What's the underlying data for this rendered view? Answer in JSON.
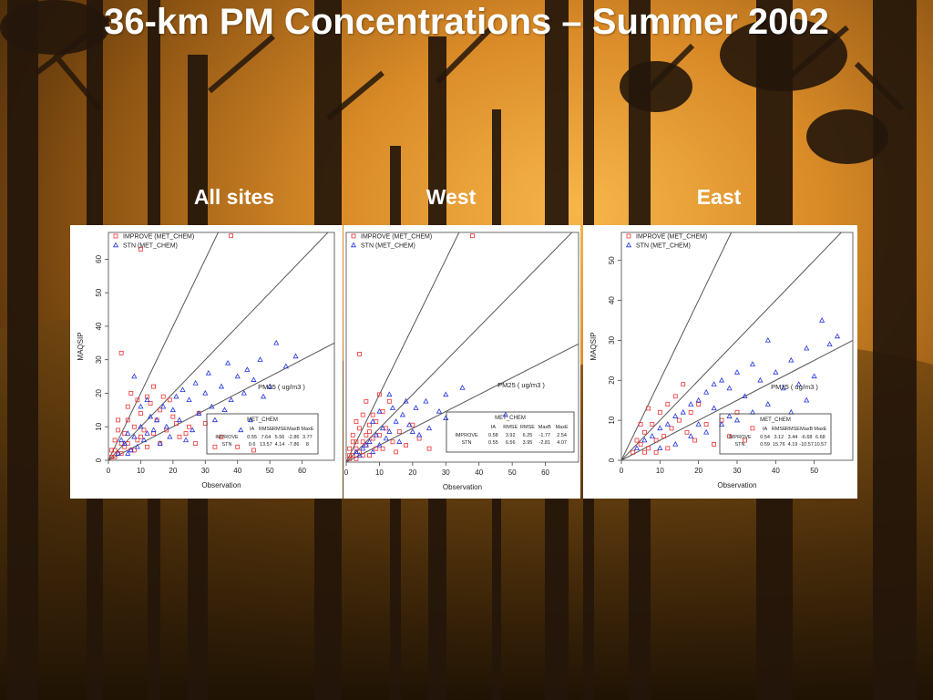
{
  "slide": {
    "title": "36-km PM Concentrations – Summer 2002",
    "panel_titles": [
      "All sites",
      "West",
      "East"
    ]
  },
  "colors": {
    "improve": "#ee3333",
    "stn": "#2233dd",
    "reference_lines": "#555555"
  },
  "chart_data": [
    {
      "type": "scatter",
      "panel": "All sites",
      "title": "PM25 ( ug/m3 )",
      "xlabel": "Observation",
      "ylabel": "MAQSIP",
      "xlim": [
        0,
        70
      ],
      "ylim": [
        0,
        68
      ],
      "xticks": [
        0,
        10,
        20,
        30,
        40,
        50,
        60
      ],
      "yticks": [
        0,
        10,
        20,
        30,
        40,
        50,
        60
      ],
      "reference_line_slopes": [
        2,
        1,
        0.5
      ],
      "legend": [
        "IMPROVE (MET_CHEM)",
        "STN (MET_CHEM)"
      ],
      "legend_position": "top-left",
      "series": [
        {
          "name": "IMPROVE (MET_CHEM)",
          "marker": "square",
          "points": [
            [
              1,
              1
            ],
            [
              2,
              3
            ],
            [
              3,
              2
            ],
            [
              4,
              5
            ],
            [
              5,
              4
            ],
            [
              2,
              6
            ],
            [
              3,
              9
            ],
            [
              5,
              8
            ],
            [
              6,
              12
            ],
            [
              7,
              3
            ],
            [
              8,
              10
            ],
            [
              9,
              6
            ],
            [
              10,
              14
            ],
            [
              11,
              9
            ],
            [
              12,
              4
            ],
            [
              13,
              17
            ],
            [
              14,
              8
            ],
            [
              15,
              12
            ],
            [
              16,
              5
            ],
            [
              17,
              19
            ],
            [
              4,
              32
            ],
            [
              38,
              67
            ],
            [
              10,
              63
            ],
            [
              18,
              9
            ],
            [
              20,
              13
            ],
            [
              22,
              7
            ],
            [
              25,
              10
            ],
            [
              27,
              5
            ],
            [
              30,
              11
            ],
            [
              33,
              4
            ],
            [
              6,
              16
            ],
            [
              7,
              20
            ],
            [
              9,
              18
            ],
            [
              3,
              12
            ],
            [
              12,
              19
            ],
            [
              14,
              22
            ],
            [
              16,
              15
            ],
            [
              19,
              18
            ],
            [
              21,
              11
            ],
            [
              24,
              8
            ],
            [
              1,
              3
            ],
            [
              2,
              1
            ],
            [
              4,
              2
            ],
            [
              6,
              5
            ],
            [
              8,
              3
            ],
            [
              10,
              7
            ],
            [
              35,
              7
            ],
            [
              40,
              4
            ],
            [
              45,
              3
            ],
            [
              28,
              14
            ]
          ]
        },
        {
          "name": "STN (MET_CHEM)",
          "marker": "triangle",
          "points": [
            [
              5,
              5
            ],
            [
              8,
              7
            ],
            [
              10,
              10
            ],
            [
              12,
              8
            ],
            [
              15,
              12
            ],
            [
              18,
              10
            ],
            [
              20,
              15
            ],
            [
              22,
              12
            ],
            [
              25,
              18
            ],
            [
              28,
              14
            ],
            [
              30,
              20
            ],
            [
              32,
              16
            ],
            [
              35,
              22
            ],
            [
              38,
              18
            ],
            [
              40,
              25
            ],
            [
              42,
              20
            ],
            [
              45,
              24
            ],
            [
              48,
              19
            ],
            [
              50,
              22
            ],
            [
              52,
              35
            ],
            [
              55,
              28
            ],
            [
              58,
              31
            ],
            [
              36,
              15
            ],
            [
              33,
              12
            ],
            [
              26,
              9
            ],
            [
              24,
              6
            ],
            [
              19,
              7
            ],
            [
              16,
              5
            ],
            [
              14,
              9
            ],
            [
              11,
              6
            ],
            [
              9,
              4
            ],
            [
              7,
              3
            ],
            [
              6,
              8
            ],
            [
              13,
              13
            ],
            [
              17,
              16
            ],
            [
              21,
              19
            ],
            [
              23,
              21
            ],
            [
              27,
              23
            ],
            [
              31,
              26
            ],
            [
              37,
              29
            ],
            [
              43,
              27
            ],
            [
              47,
              30
            ],
            [
              8,
              25
            ],
            [
              10,
              16
            ],
            [
              12,
              18
            ],
            [
              3,
              2
            ],
            [
              4,
              6
            ],
            [
              6,
              2
            ],
            [
              44,
              12
            ],
            [
              41,
              9
            ]
          ]
        }
      ],
      "stats_table": {
        "title": "MET_CHEM",
        "columns": [
          "IA",
          "RMSE",
          "RMSE",
          "MaxB",
          "MaxE"
        ],
        "rows": [
          {
            "label": "IMPROVE",
            "values": [
              "0.55",
              "7.64",
              "5.56",
              "-2.86",
              "3.77"
            ]
          },
          {
            "label": "STN",
            "values": [
              "0.6",
              "13.57",
              "4.14",
              "-7.86",
              "8"
            ]
          }
        ]
      }
    },
    {
      "type": "scatter",
      "panel": "West",
      "title": "PM25 ( ug/m3 )",
      "xlabel": "Observation",
      "ylabel": "",
      "xlim": [
        0,
        70
      ],
      "ylim": [
        0,
        68
      ],
      "xticks": [
        0,
        10,
        20,
        30,
        40,
        50,
        60
      ],
      "yticks": [],
      "reference_line_slopes": [
        2,
        1,
        0.5
      ],
      "legend": [
        "IMPROVE (MET_CHEM)",
        "STN (MET_CHEM)"
      ],
      "legend_position": "top-left",
      "series": [
        {
          "name": "IMPROVE (MET_CHEM)",
          "marker": "square",
          "points": [
            [
              1,
              1
            ],
            [
              2,
              2
            ],
            [
              3,
              4
            ],
            [
              4,
              3
            ],
            [
              5,
              6
            ],
            [
              6,
              5
            ],
            [
              7,
              9
            ],
            [
              8,
              7
            ],
            [
              9,
              12
            ],
            [
              10,
              8
            ],
            [
              11,
              15
            ],
            [
              12,
              10
            ],
            [
              13,
              18
            ],
            [
              2,
              8
            ],
            [
              3,
              12
            ],
            [
              5,
              14
            ],
            [
              6,
              18
            ],
            [
              4,
              32
            ],
            [
              38,
              67
            ],
            [
              7,
              2
            ],
            [
              9,
              4
            ],
            [
              14,
              6
            ],
            [
              16,
              9
            ],
            [
              18,
              5
            ],
            [
              20,
              11
            ],
            [
              1,
              4
            ],
            [
              2,
              6
            ],
            [
              4,
              10
            ],
            [
              8,
              14
            ],
            [
              10,
              20
            ],
            [
              3,
              1
            ],
            [
              5,
              2
            ],
            [
              6,
              8
            ],
            [
              11,
              4
            ],
            [
              15,
              3
            ],
            [
              22,
              7
            ],
            [
              25,
              4
            ],
            [
              1,
              2
            ],
            [
              3,
              6
            ],
            [
              7,
              11
            ]
          ]
        },
        {
          "name": "STN (MET_CHEM)",
          "marker": "triangle",
          "points": [
            [
              3,
              3
            ],
            [
              5,
              4
            ],
            [
              7,
              6
            ],
            [
              9,
              8
            ],
            [
              11,
              10
            ],
            [
              13,
              9
            ],
            [
              15,
              12
            ],
            [
              17,
              14
            ],
            [
              19,
              11
            ],
            [
              21,
              16
            ],
            [
              24,
              18
            ],
            [
              28,
              15
            ],
            [
              30,
              20
            ],
            [
              35,
              22
            ],
            [
              48,
              14
            ],
            [
              13,
              20
            ],
            [
              10,
              15
            ],
            [
              8,
              12
            ],
            [
              6,
              5
            ],
            [
              4,
              2
            ],
            [
              12,
              7
            ],
            [
              16,
              6
            ],
            [
              20,
              9
            ],
            [
              25,
              10
            ],
            [
              30,
              13
            ],
            [
              8,
              3
            ],
            [
              10,
              5
            ],
            [
              14,
              16
            ],
            [
              18,
              18
            ],
            [
              22,
              8
            ]
          ]
        }
      ],
      "stats_table": {
        "title": "MET_CHEM",
        "columns": [
          "IA",
          "RMSE",
          "RMSE",
          "MaxB",
          "MaxE"
        ],
        "rows": [
          {
            "label": "IMPROVE",
            "values": [
              "0.58",
              "3.92",
              "6.25",
              "-1.77",
              "2.54"
            ]
          },
          {
            "label": "STN",
            "values": [
              "0.55",
              "6.56",
              "3.95",
              "-2.81",
              "4.07"
            ]
          }
        ]
      }
    },
    {
      "type": "scatter",
      "panel": "East",
      "title": "PM25 ( ug/m3 )",
      "xlabel": "Observation",
      "ylabel": "MAQSIP",
      "xlim": [
        0,
        60
      ],
      "ylim": [
        0,
        57
      ],
      "xticks": [
        0,
        10,
        20,
        30,
        40,
        50
      ],
      "yticks": [
        0,
        10,
        20,
        30,
        40,
        50
      ],
      "reference_line_slopes": [
        2,
        1,
        0.5
      ],
      "legend": [
        "IMPROVE (MET_CHEM)",
        "STN (MET_CHEM)"
      ],
      "legend_position": "top-left",
      "series": [
        {
          "name": "IMPROVE (MET_CHEM)",
          "marker": "square",
          "points": [
            [
              3,
              2
            ],
            [
              5,
              4
            ],
            [
              6,
              7
            ],
            [
              7,
              3
            ],
            [
              8,
              9
            ],
            [
              9,
              5
            ],
            [
              10,
              12
            ],
            [
              11,
              6
            ],
            [
              12,
              14
            ],
            [
              13,
              8
            ],
            [
              14,
              16
            ],
            [
              15,
              10
            ],
            [
              16,
              19
            ],
            [
              17,
              7
            ],
            [
              18,
              12
            ],
            [
              20,
              14
            ],
            [
              22,
              9
            ],
            [
              24,
              4
            ],
            [
              26,
              10
            ],
            [
              28,
              6
            ],
            [
              30,
              12
            ],
            [
              32,
              5
            ],
            [
              34,
              8
            ],
            [
              5,
              9
            ],
            [
              7,
              13
            ],
            [
              4,
              5
            ],
            [
              6,
              2
            ],
            [
              9,
              2
            ],
            [
              12,
              3
            ],
            [
              19,
              5
            ]
          ]
        },
        {
          "name": "STN (MET_CHEM)",
          "marker": "triangle",
          "points": [
            [
              4,
              3
            ],
            [
              6,
              5
            ],
            [
              8,
              6
            ],
            [
              10,
              8
            ],
            [
              12,
              9
            ],
            [
              14,
              11
            ],
            [
              16,
              12
            ],
            [
              18,
              14
            ],
            [
              20,
              15
            ],
            [
              22,
              17
            ],
            [
              24,
              19
            ],
            [
              26,
              20
            ],
            [
              28,
              18
            ],
            [
              30,
              22
            ],
            [
              32,
              16
            ],
            [
              34,
              24
            ],
            [
              36,
              20
            ],
            [
              38,
              30
            ],
            [
              40,
              22
            ],
            [
              42,
              18
            ],
            [
              44,
              25
            ],
            [
              46,
              19
            ],
            [
              48,
              28
            ],
            [
              50,
              21
            ],
            [
              52,
              35
            ],
            [
              54,
              29
            ],
            [
              56,
              31
            ],
            [
              38,
              14
            ],
            [
              34,
              12
            ],
            [
              30,
              10
            ],
            [
              26,
              9
            ],
            [
              22,
              7
            ],
            [
              18,
              6
            ],
            [
              14,
              4
            ],
            [
              10,
              3
            ],
            [
              44,
              12
            ],
            [
              48,
              15
            ],
            [
              24,
              13
            ],
            [
              28,
              11
            ],
            [
              20,
              9
            ]
          ]
        }
      ],
      "stats_table": {
        "title": "MET_CHEM",
        "columns": [
          "IA",
          "RMSE",
          "RMSE",
          "MaxB",
          "MaxE"
        ],
        "rows": [
          {
            "label": "IMPROVE",
            "values": [
              "0.54",
              "3.12",
              "3.44",
              "-6.68",
              "6.68"
            ]
          },
          {
            "label": "STN",
            "values": [
              "0.59",
              "15.76",
              "4.19",
              "-10.57",
              "10.57"
            ]
          }
        ]
      }
    }
  ]
}
